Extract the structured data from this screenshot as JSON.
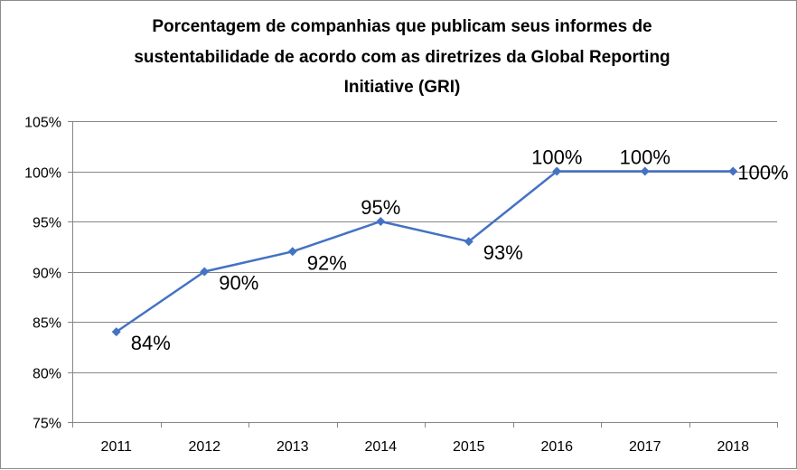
{
  "chart_data": {
    "type": "line",
    "title_lines": [
      "Porcentagem de companhias que publicam seus informes de",
      "sustentabilidade de acordo com as diretrizes da Global Reporting",
      "Initiative (GRI)"
    ],
    "categories": [
      "2011",
      "2012",
      "2013",
      "2014",
      "2015",
      "2016",
      "2017",
      "2018"
    ],
    "series": [
      {
        "name": "GRI",
        "values": [
          84,
          90,
          92,
          95,
          93,
          100,
          100,
          100
        ],
        "labels": [
          "84%",
          "90%",
          "92%",
          "95%",
          "93%",
          "100%",
          "100%",
          "100%"
        ],
        "label_positions": [
          "right",
          "right",
          "right",
          "above",
          "right",
          "above",
          "above",
          "right"
        ],
        "color": "#4472c4",
        "marker": "diamond"
      }
    ],
    "y_ticks": [
      "75%",
      "80%",
      "85%",
      "90%",
      "95%",
      "100%",
      "105%"
    ],
    "ylim": [
      75,
      105
    ],
    "ytick_step": 5,
    "xlabel": "",
    "ylabel": "",
    "grid": true,
    "legend": "none"
  }
}
